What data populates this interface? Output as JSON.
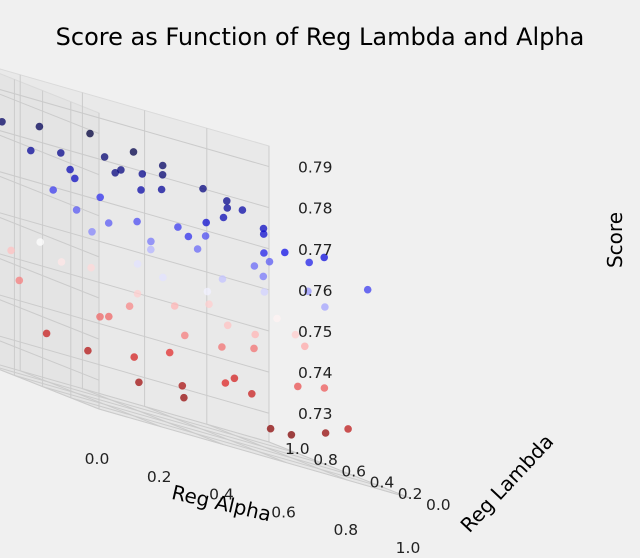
{
  "chart_data": {
    "type": "scatter",
    "title": "Score as Function of Reg Lambda and Alpha",
    "xlabel": "Reg Alpha",
    "ylabel": "Reg Lambda",
    "zlabel": "Score",
    "x_ticks": [
      "0.0",
      "0.2",
      "0.4",
      "0.6",
      "0.8",
      "1.0"
    ],
    "y_ticks": [
      "0.0",
      "0.2",
      "0.4",
      "0.6",
      "0.8",
      "1.0"
    ],
    "z_ticks": [
      "0.73",
      "0.74",
      "0.75",
      "0.76",
      "0.77",
      "0.78",
      "0.79"
    ],
    "xlim": [
      0,
      1
    ],
    "ylim": [
      0,
      1
    ],
    "zlim": [
      0.723,
      0.795
    ],
    "grid": true,
    "colormap": "seismic_r",
    "colors": {
      "low": "#b40000",
      "mid": "#ffffff",
      "high": "#000040",
      "background": "#f0f0f0"
    },
    "points": [
      {
        "x": 0.12,
        "y": 0.15,
        "z": 0.781
      },
      {
        "x": 0.28,
        "y": 0.32,
        "z": 0.778
      },
      {
        "x": 0.44,
        "y": 0.21,
        "z": 0.775
      },
      {
        "x": 0.63,
        "y": 0.48,
        "z": 0.779
      },
      {
        "x": 0.81,
        "y": 0.62,
        "z": 0.776
      },
      {
        "x": 0.34,
        "y": 0.71,
        "z": 0.782
      },
      {
        "x": 0.52,
        "y": 0.84,
        "z": 0.78
      },
      {
        "x": 0.17,
        "y": 0.58,
        "z": 0.777
      },
      {
        "x": 0.72,
        "y": 0.27,
        "z": 0.773
      },
      {
        "x": 0.91,
        "y": 0.41,
        "z": 0.774
      },
      {
        "x": 0.06,
        "y": 0.82,
        "z": 0.783
      },
      {
        "x": 0.41,
        "y": 0.46,
        "z": 0.779
      },
      {
        "x": 0.58,
        "y": 0.11,
        "z": 0.772
      },
      {
        "x": 0.23,
        "y": 0.93,
        "z": 0.784
      },
      {
        "x": 0.67,
        "y": 0.74,
        "z": 0.781
      },
      {
        "x": 0.86,
        "y": 0.88,
        "z": 0.778
      },
      {
        "x": 0.31,
        "y": 0.05,
        "z": 0.771
      },
      {
        "x": 0.49,
        "y": 0.63,
        "z": 0.782
      },
      {
        "x": 0.09,
        "y": 0.37,
        "z": 0.776
      },
      {
        "x": 0.77,
        "y": 0.53,
        "z": 0.775
      },
      {
        "x": 0.37,
        "y": 0.88,
        "z": 0.786
      },
      {
        "x": 0.55,
        "y": 0.33,
        "z": 0.777
      },
      {
        "x": 0.95,
        "y": 0.19,
        "z": 0.77
      },
      {
        "x": 0.19,
        "y": 0.69,
        "z": 0.78
      },
      {
        "x": 0.64,
        "y": 0.96,
        "z": 0.783
      },
      {
        "x": 0.03,
        "y": 0.55,
        "z": 0.779
      },
      {
        "x": 0.46,
        "y": 0.77,
        "z": 0.785
      },
      {
        "x": 0.83,
        "y": 0.34,
        "z": 0.772
      },
      {
        "x": 0.27,
        "y": 0.44,
        "z": 0.781
      },
      {
        "x": 0.71,
        "y": 0.66,
        "z": 0.78
      },
      {
        "x": 0.14,
        "y": 0.24,
        "z": 0.768
      },
      {
        "x": 0.39,
        "y": 0.59,
        "z": 0.769
      },
      {
        "x": 0.61,
        "y": 0.18,
        "z": 0.766
      },
      {
        "x": 0.87,
        "y": 0.71,
        "z": 0.768
      },
      {
        "x": 0.22,
        "y": 0.81,
        "z": 0.77
      },
      {
        "x": 0.53,
        "y": 0.47,
        "z": 0.767
      },
      {
        "x": 0.76,
        "y": 0.92,
        "z": 0.769
      },
      {
        "x": 0.05,
        "y": 0.16,
        "z": 0.765
      },
      {
        "x": 0.33,
        "y": 0.36,
        "z": 0.766
      },
      {
        "x": 0.69,
        "y": 0.42,
        "z": 0.767
      },
      {
        "x": 0.93,
        "y": 0.57,
        "z": 0.764
      },
      {
        "x": 0.43,
        "y": 0.94,
        "z": 0.771
      },
      {
        "x": 0.15,
        "y": 0.49,
        "z": 0.768
      },
      {
        "x": 0.58,
        "y": 0.72,
        "z": 0.77
      },
      {
        "x": 0.79,
        "y": 0.14,
        "z": 0.763
      },
      {
        "x": 0.26,
        "y": 0.12,
        "z": 0.759
      },
      {
        "x": 0.48,
        "y": 0.29,
        "z": 0.758
      },
      {
        "x": 0.66,
        "y": 0.58,
        "z": 0.761
      },
      {
        "x": 0.89,
        "y": 0.79,
        "z": 0.76
      },
      {
        "x": 0.11,
        "y": 0.66,
        "z": 0.757
      },
      {
        "x": 0.36,
        "y": 0.52,
        "z": 0.759
      },
      {
        "x": 0.74,
        "y": 0.37,
        "z": 0.756
      },
      {
        "x": 0.57,
        "y": 0.89,
        "z": 0.762
      },
      {
        "x": 0.02,
        "y": 0.31,
        "z": 0.755
      },
      {
        "x": 0.21,
        "y": 0.19,
        "z": 0.753
      },
      {
        "x": 0.45,
        "y": 0.08,
        "z": 0.752
      },
      {
        "x": 0.62,
        "y": 0.26,
        "z": 0.751
      },
      {
        "x": 0.84,
        "y": 0.46,
        "z": 0.753
      },
      {
        "x": 0.31,
        "y": 0.74,
        "z": 0.754
      },
      {
        "x": 0.97,
        "y": 0.68,
        "z": 0.75
      },
      {
        "x": 0.13,
        "y": 0.91,
        "z": 0.752
      },
      {
        "x": 0.52,
        "y": 0.61,
        "z": 0.751
      },
      {
        "x": 0.73,
        "y": 0.83,
        "z": 0.753
      },
      {
        "x": 0.38,
        "y": 0.23,
        "z": 0.746
      },
      {
        "x": 0.59,
        "y": 0.43,
        "z": 0.745
      },
      {
        "x": 0.18,
        "y": 0.39,
        "z": 0.744
      },
      {
        "x": 0.82,
        "y": 0.21,
        "z": 0.743
      },
      {
        "x": 0.07,
        "y": 0.72,
        "z": 0.746
      },
      {
        "x": 0.47,
        "y": 0.82,
        "z": 0.747
      },
      {
        "x": 0.68,
        "y": 0.09,
        "z": 0.742
      },
      {
        "x": 0.92,
        "y": 0.93,
        "z": 0.745
      },
      {
        "x": 0.29,
        "y": 0.57,
        "z": 0.744
      },
      {
        "x": 0.42,
        "y": 0.03,
        "z": 0.738
      },
      {
        "x": 0.24,
        "y": 0.28,
        "z": 0.737
      },
      {
        "x": 0.65,
        "y": 0.35,
        "z": 0.736
      },
      {
        "x": 0.86,
        "y": 0.13,
        "z": 0.735
      },
      {
        "x": 0.54,
        "y": 0.69,
        "z": 0.739
      },
      {
        "x": 0.04,
        "y": 0.46,
        "z": 0.736
      },
      {
        "x": 0.78,
        "y": 0.76,
        "z": 0.737
      },
      {
        "x": 0.35,
        "y": 0.17,
        "z": 0.731
      },
      {
        "x": 0.57,
        "y": 0.04,
        "z": 0.73
      },
      {
        "x": 0.16,
        "y": 0.07,
        "z": 0.732
      },
      {
        "x": 0.75,
        "y": 0.29,
        "z": 0.729
      },
      {
        "x": 0.44,
        "y": 0.38,
        "z": 0.733
      },
      {
        "x": 0.96,
        "y": 0.51,
        "z": 0.731
      },
      {
        "x": 0.25,
        "y": 0.63,
        "z": 0.734
      }
    ]
  }
}
